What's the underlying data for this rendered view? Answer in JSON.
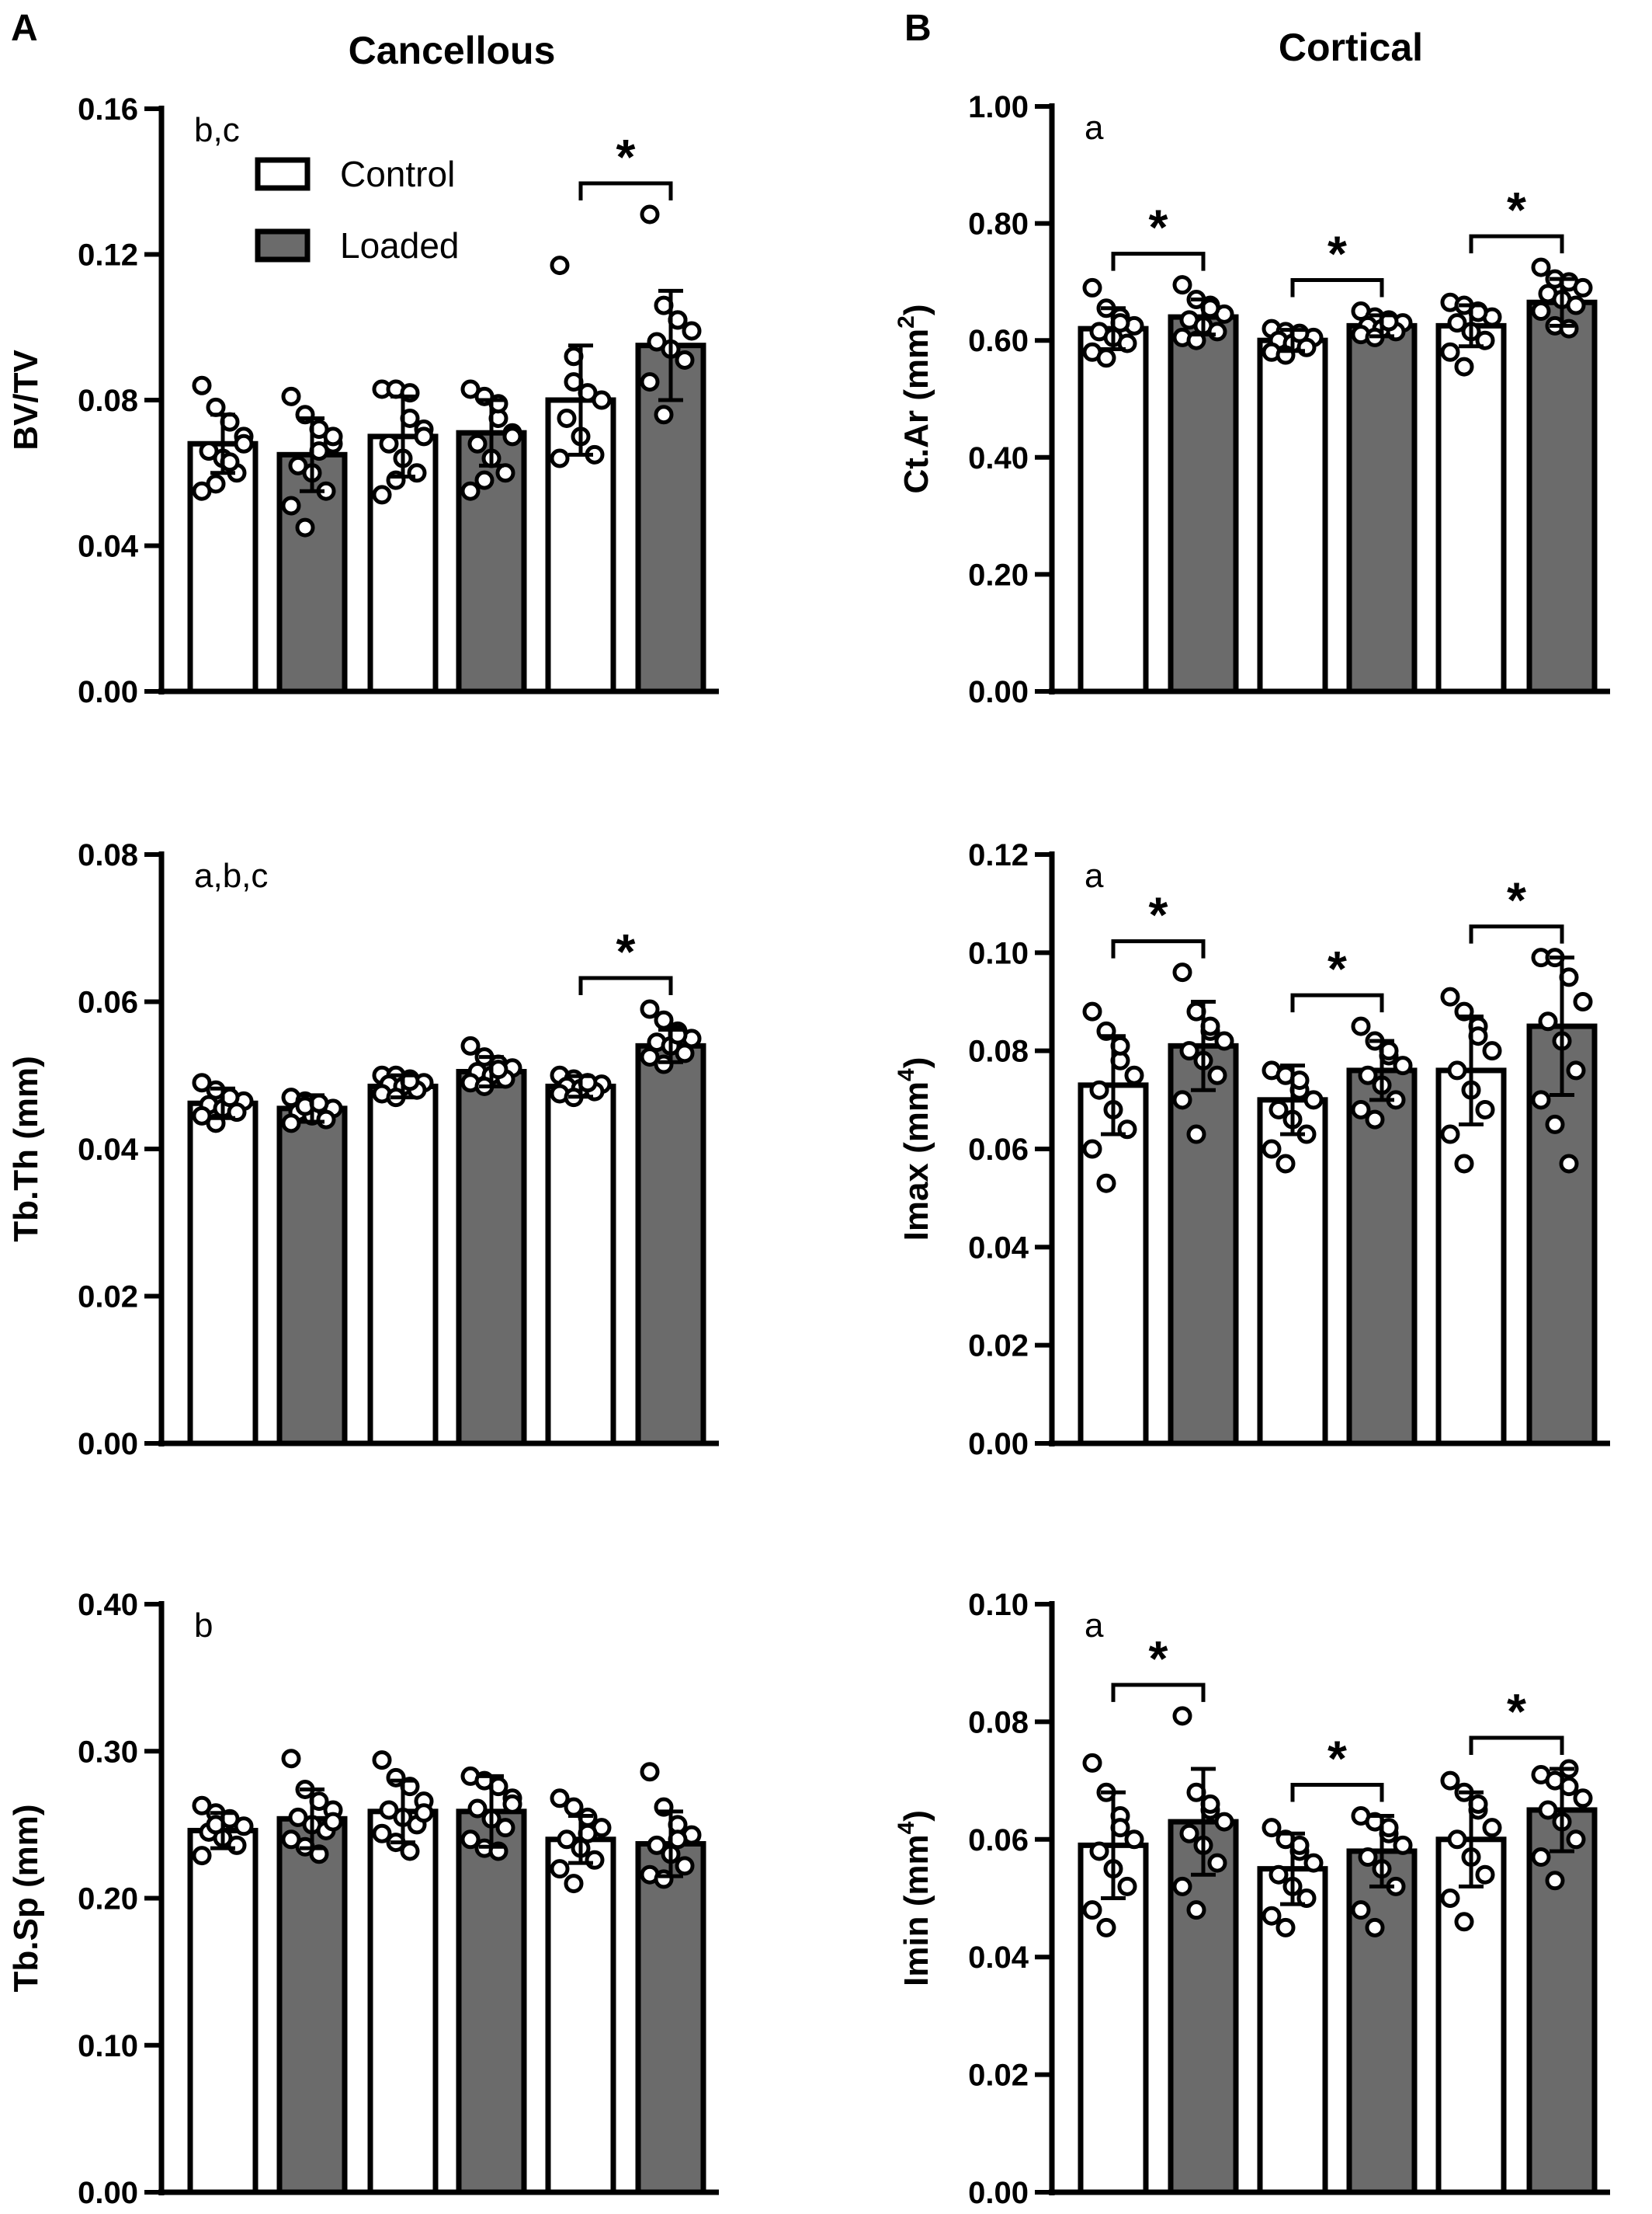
{
  "figure": {
    "panel_A": "A",
    "panel_B": "B",
    "col_A_title": "Cancellous",
    "col_B_title": "Cortical"
  },
  "legend": {
    "items": [
      {
        "label": "Control",
        "color": "#ffffff"
      },
      {
        "label": "Loaded",
        "color": "#6b6b6b"
      }
    ]
  },
  "colors": {
    "control": "#ffffff",
    "loaded": "#6b6b6b",
    "stroke": "#000000"
  },
  "chart_data": [
    {
      "type": "bar",
      "panel": "A",
      "ylabel": "BV/TV",
      "ylim": [
        0,
        0.16
      ],
      "yticks": [
        "0.00",
        "0.04",
        "0.08",
        "0.12",
        "0.16"
      ],
      "note": "b,c",
      "values": [
        0.068,
        0.065,
        0.07,
        0.071,
        0.08,
        0.095
      ],
      "errors": [
        0.008,
        0.01,
        0.011,
        0.009,
        0.015,
        0.015
      ],
      "points": [
        [
          0.084,
          0.078,
          0.074,
          0.07,
          0.066,
          0.064,
          0.06,
          0.055,
          0.057,
          0.063,
          0.068
        ],
        [
          0.081,
          0.076,
          0.072,
          0.068,
          0.062,
          0.06,
          0.055,
          0.051,
          0.045,
          0.066,
          0.07
        ],
        [
          0.083,
          0.083,
          0.075,
          0.072,
          0.068,
          0.064,
          0.06,
          0.054,
          0.058,
          0.082,
          0.07
        ],
        [
          0.083,
          0.081,
          0.075,
          0.071,
          0.068,
          0.064,
          0.06,
          0.055,
          0.058,
          0.079,
          0.07
        ],
        [
          0.117,
          0.092,
          0.082,
          0.08,
          0.075,
          0.07,
          0.065,
          0.064,
          0.085
        ],
        [
          0.131,
          0.106,
          0.102,
          0.099,
          0.096,
          0.094,
          0.091,
          0.085,
          0.076,
          0.102
        ]
      ],
      "significance": [
        {
          "pair": [
            4,
            5
          ],
          "label": "*"
        }
      ],
      "legend": true
    },
    {
      "type": "bar",
      "panel": "A",
      "ylabel": "Tb.Th (mm)",
      "ylim": [
        0,
        0.08
      ],
      "yticks": [
        "0.00",
        "0.02",
        "0.04",
        "0.06",
        "0.08"
      ],
      "note": "a,b,c",
      "values": [
        0.0462,
        0.0455,
        0.0485,
        0.0505,
        0.0485,
        0.054
      ],
      "errors": [
        0.002,
        0.0018,
        0.0015,
        0.002,
        0.0014,
        0.0022
      ],
      "points": [
        [
          0.049,
          0.048,
          0.047,
          0.0465,
          0.046,
          0.0455,
          0.045,
          0.0445,
          0.0435,
          0.047
        ],
        [
          0.047,
          0.0465,
          0.046,
          0.0455,
          0.045,
          0.0445,
          0.044,
          0.0435,
          0.0458,
          0.0462
        ],
        [
          0.05,
          0.05,
          0.0495,
          0.049,
          0.0488,
          0.0485,
          0.048,
          0.0475,
          0.047,
          0.0492
        ],
        [
          0.054,
          0.0525,
          0.0515,
          0.051,
          0.0505,
          0.05,
          0.0495,
          0.049,
          0.0485,
          0.0508
        ],
        [
          0.05,
          0.0495,
          0.049,
          0.0488,
          0.0485,
          0.0482,
          0.0478,
          0.0475,
          0.047,
          0.049
        ],
        [
          0.059,
          0.0575,
          0.056,
          0.055,
          0.0545,
          0.054,
          0.053,
          0.0525,
          0.0515,
          0.0555
        ]
      ],
      "significance": [
        {
          "pair": [
            4,
            5
          ],
          "label": "*"
        }
      ]
    },
    {
      "type": "bar",
      "panel": "A",
      "ylabel": "Tb.Sp (mm)",
      "ylim": [
        0,
        0.4
      ],
      "yticks": [
        "0.00",
        "0.10",
        "0.20",
        "0.30",
        "0.40"
      ],
      "note": "b",
      "values": [
        0.246,
        0.254,
        0.259,
        0.259,
        0.24,
        0.237
      ],
      "errors": [
        0.012,
        0.02,
        0.021,
        0.024,
        0.016,
        0.022
      ],
      "points": [
        [
          0.263,
          0.258,
          0.254,
          0.249,
          0.245,
          0.241,
          0.236,
          0.229,
          0.25
        ],
        [
          0.295,
          0.274,
          0.266,
          0.26,
          0.255,
          0.25,
          0.246,
          0.24,
          0.235,
          0.23,
          0.252
        ],
        [
          0.294,
          0.282,
          0.276,
          0.266,
          0.26,
          0.255,
          0.25,
          0.244,
          0.238,
          0.232,
          0.258
        ],
        [
          0.283,
          0.28,
          0.276,
          0.268,
          0.261,
          0.254,
          0.248,
          0.24,
          0.234,
          0.232,
          0.264
        ],
        [
          0.268,
          0.262,
          0.255,
          0.248,
          0.24,
          0.234,
          0.226,
          0.22,
          0.21,
          0.244
        ],
        [
          0.286,
          0.262,
          0.25,
          0.243,
          0.236,
          0.23,
          0.222,
          0.216,
          0.213,
          0.24
        ]
      ],
      "significance": []
    },
    {
      "type": "bar",
      "panel": "B",
      "ylabel": "Ct.Ar (mm2)",
      "ylim": [
        0,
        1.0
      ],
      "yticks": [
        "0.00",
        "0.20",
        "0.40",
        "0.60",
        "0.80",
        "1.00"
      ],
      "note": "a",
      "values": [
        0.62,
        0.64,
        0.6,
        0.625,
        0.625,
        0.665
      ],
      "errors": [
        0.035,
        0.03,
        0.018,
        0.018,
        0.035,
        0.04
      ],
      "points": [
        [
          0.69,
          0.655,
          0.64,
          0.625,
          0.615,
          0.605,
          0.595,
          0.58,
          0.57,
          0.63
        ],
        [
          0.695,
          0.67,
          0.66,
          0.645,
          0.635,
          0.625,
          0.615,
          0.605,
          0.6,
          0.655
        ],
        [
          0.62,
          0.615,
          0.61,
          0.605,
          0.6,
          0.595,
          0.588,
          0.58,
          0.575,
          0.612
        ],
        [
          0.65,
          0.64,
          0.635,
          0.63,
          0.625,
          0.62,
          0.615,
          0.61,
          0.605,
          0.632
        ],
        [
          0.665,
          0.66,
          0.65,
          0.64,
          0.63,
          0.615,
          0.6,
          0.58,
          0.555,
          0.648
        ],
        [
          0.725,
          0.705,
          0.7,
          0.69,
          0.68,
          0.67,
          0.66,
          0.65,
          0.625,
          0.62
        ]
      ],
      "significance": [
        {
          "pair": [
            0,
            1
          ],
          "label": "*"
        },
        {
          "pair": [
            2,
            3
          ],
          "label": "*"
        },
        {
          "pair": [
            4,
            5
          ],
          "label": "*"
        }
      ]
    },
    {
      "type": "bar",
      "panel": "B",
      "ylabel": "Imax (mm4)",
      "ylim": [
        0,
        0.12
      ],
      "yticks": [
        "0.00",
        "0.02",
        "0.04",
        "0.06",
        "0.08",
        "0.10",
        "0.12"
      ],
      "note": "a",
      "values": [
        0.073,
        0.081,
        0.07,
        0.076,
        0.076,
        0.085
      ],
      "errors": [
        0.01,
        0.009,
        0.007,
        0.006,
        0.011,
        0.014
      ],
      "points": [
        [
          0.088,
          0.084,
          0.078,
          0.075,
          0.072,
          0.068,
          0.064,
          0.06,
          0.053,
          0.081
        ],
        [
          0.096,
          0.088,
          0.084,
          0.082,
          0.08,
          0.078,
          0.075,
          0.07,
          0.063,
          0.085
        ],
        [
          0.076,
          0.075,
          0.072,
          0.07,
          0.068,
          0.066,
          0.063,
          0.06,
          0.057,
          0.074
        ],
        [
          0.085,
          0.082,
          0.079,
          0.077,
          0.075,
          0.073,
          0.07,
          0.068,
          0.066,
          0.08
        ],
        [
          0.091,
          0.088,
          0.085,
          0.08,
          0.076,
          0.072,
          0.068,
          0.063,
          0.057,
          0.083
        ],
        [
          0.099,
          0.099,
          0.095,
          0.09,
          0.086,
          0.082,
          0.076,
          0.07,
          0.065,
          0.057
        ]
      ],
      "significance": [
        {
          "pair": [
            0,
            1
          ],
          "label": "*"
        },
        {
          "pair": [
            2,
            3
          ],
          "label": "*"
        },
        {
          "pair": [
            4,
            5
          ],
          "label": "*"
        }
      ]
    },
    {
      "type": "bar",
      "panel": "B",
      "ylabel": "Imin (mm4)",
      "ylim": [
        0,
        0.1
      ],
      "yticks": [
        "0.00",
        "0.02",
        "0.04",
        "0.06",
        "0.08",
        "0.10"
      ],
      "note": "a",
      "values": [
        0.059,
        0.063,
        0.055,
        0.058,
        0.06,
        0.065
      ],
      "errors": [
        0.009,
        0.009,
        0.006,
        0.006,
        0.008,
        0.007
      ],
      "points": [
        [
          0.073,
          0.068,
          0.064,
          0.06,
          0.058,
          0.055,
          0.052,
          0.048,
          0.045,
          0.062
        ],
        [
          0.081,
          0.068,
          0.065,
          0.063,
          0.061,
          0.059,
          0.056,
          0.052,
          0.048,
          0.066
        ],
        [
          0.062,
          0.06,
          0.058,
          0.056,
          0.054,
          0.052,
          0.05,
          0.047,
          0.045,
          0.059
        ],
        [
          0.064,
          0.063,
          0.061,
          0.059,
          0.057,
          0.055,
          0.052,
          0.048,
          0.045,
          0.062
        ],
        [
          0.07,
          0.068,
          0.065,
          0.062,
          0.06,
          0.057,
          0.054,
          0.05,
          0.046,
          0.066
        ],
        [
          0.071,
          0.07,
          0.069,
          0.067,
          0.065,
          0.063,
          0.06,
          0.057,
          0.053,
          0.072
        ]
      ],
      "significance": [
        {
          "pair": [
            0,
            1
          ],
          "label": "*"
        },
        {
          "pair": [
            2,
            3
          ],
          "label": "*"
        },
        {
          "pair": [
            4,
            5
          ],
          "label": "*"
        }
      ]
    }
  ]
}
